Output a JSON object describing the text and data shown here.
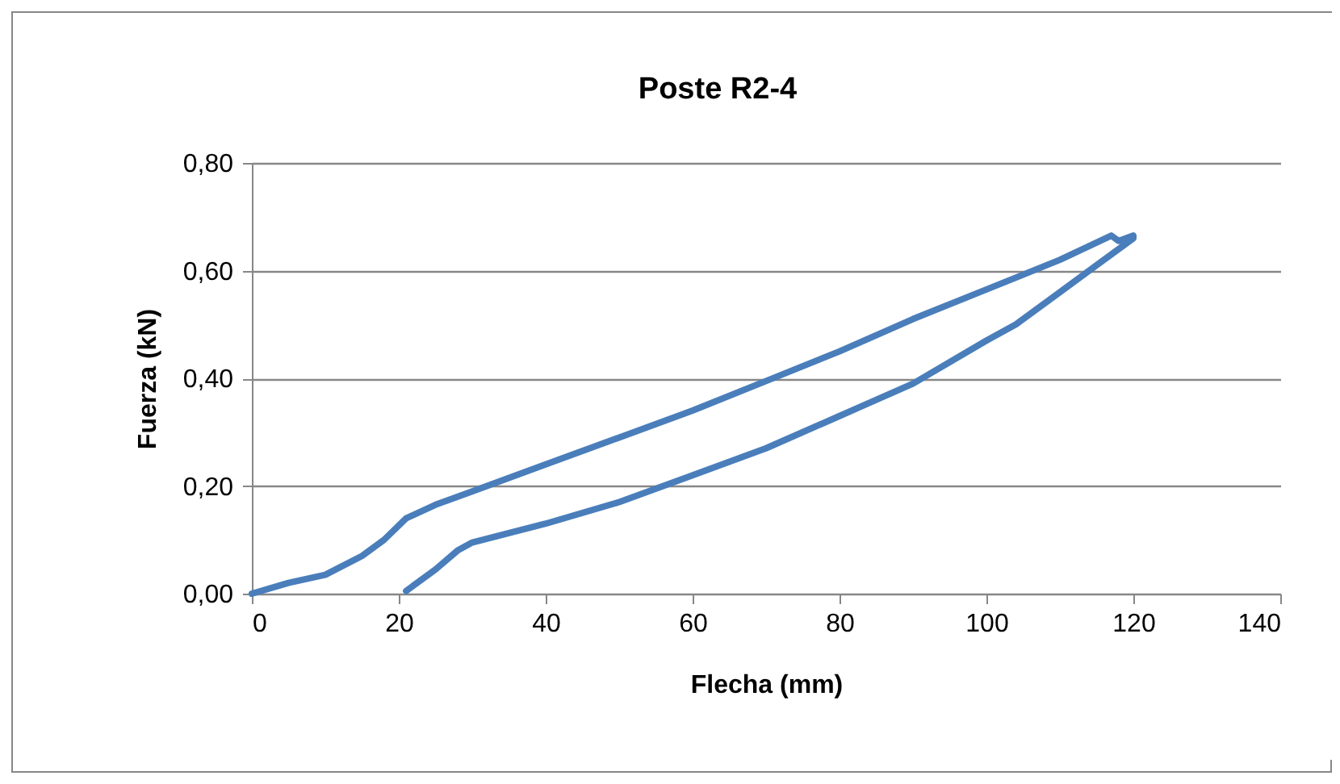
{
  "chart_data": {
    "type": "line",
    "title": "Poste R2-4",
    "xlabel": "Flecha (mm)",
    "ylabel": "Fuerza (kN)",
    "xlim": [
      0,
      140
    ],
    "xticks": [
      0,
      20,
      40,
      60,
      80,
      100,
      120,
      140
    ],
    "ylim": [
      0,
      0.8
    ],
    "yticks": [
      {
        "value": 0,
        "label": "0,00"
      },
      {
        "value": 0.2,
        "label": "0,20"
      },
      {
        "value": 0.4,
        "label": "0,40"
      },
      {
        "value": 0.6,
        "label": "0,60"
      },
      {
        "value": 0.8,
        "label": "0,80"
      }
    ],
    "grid": "y",
    "marker": "none",
    "line_style": "solid",
    "series": [
      {
        "color": "#4a7ebb",
        "x": [
          0,
          5,
          10,
          15,
          18,
          21,
          25,
          30,
          40,
          50,
          60,
          70,
          80,
          90,
          100,
          110,
          117,
          118,
          120,
          120,
          115,
          110,
          104,
          100,
          90,
          80,
          70,
          60,
          50,
          40,
          30,
          28,
          25,
          21
        ],
        "values": [
          0,
          0.02,
          0.035,
          0.07,
          0.1,
          0.14,
          0.165,
          0.19,
          0.24,
          0.29,
          0.34,
          0.395,
          0.45,
          0.51,
          0.565,
          0.62,
          0.665,
          0.655,
          0.665,
          0.66,
          0.61,
          0.56,
          0.5,
          0.47,
          0.39,
          0.33,
          0.27,
          0.22,
          0.17,
          0.13,
          0.095,
          0.08,
          0.045,
          0.005
        ]
      }
    ]
  }
}
